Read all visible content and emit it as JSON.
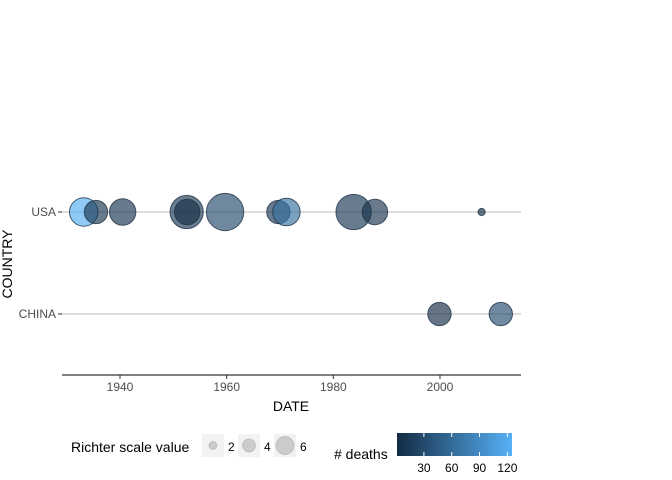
{
  "chart_data": {
    "type": "scatter",
    "xlabel": "DATE",
    "ylabel": "COUNTRY",
    "xlim": [
      1928,
      2015
    ],
    "x_ticks": [
      1940,
      1960,
      1980,
      2000
    ],
    "categories": [
      "USA",
      "CHINA"
    ],
    "points": [
      {
        "country": "USA",
        "date": 1933.2,
        "richter": 5.6,
        "deaths": 120
      },
      {
        "country": "USA",
        "date": 1935.5,
        "richter": 4.6,
        "deaths": 10
      },
      {
        "country": "USA",
        "date": 1940.5,
        "richter": 5.2,
        "deaths": 9
      },
      {
        "country": "USA",
        "date": 1952.5,
        "richter": 6.5,
        "deaths": 12
      },
      {
        "country": "USA",
        "date": 1952.6,
        "richter": 5.0,
        "deaths": 2
      },
      {
        "country": "USA",
        "date": 1959.7,
        "richter": 7.3,
        "deaths": 28
      },
      {
        "country": "USA",
        "date": 1969.7,
        "richter": 4.6,
        "deaths": 10
      },
      {
        "country": "USA",
        "date": 1971.2,
        "richter": 5.4,
        "deaths": 65
      },
      {
        "country": "USA",
        "date": 1983.8,
        "richter": 6.9,
        "deaths": 10
      },
      {
        "country": "USA",
        "date": 1987.8,
        "richter": 5.0,
        "deaths": 8
      },
      {
        "country": "USA",
        "date": 2007.8,
        "richter": 1.5,
        "deaths": 1
      },
      {
        "country": "CHINA",
        "date": 1999.9,
        "richter": 4.6,
        "deaths": 1
      },
      {
        "country": "CHINA",
        "date": 2011.4,
        "richter": 4.6,
        "deaths": 30
      }
    ],
    "size_legend": {
      "title": "Richter scale value",
      "values": [
        2,
        4,
        6
      ]
    },
    "color_legend": {
      "title": "# deaths",
      "ticks": [
        30,
        60,
        90,
        120
      ],
      "min": 1,
      "max": 125,
      "low_color": "#132B43",
      "high_color": "#56B1F7"
    },
    "grid": false
  }
}
